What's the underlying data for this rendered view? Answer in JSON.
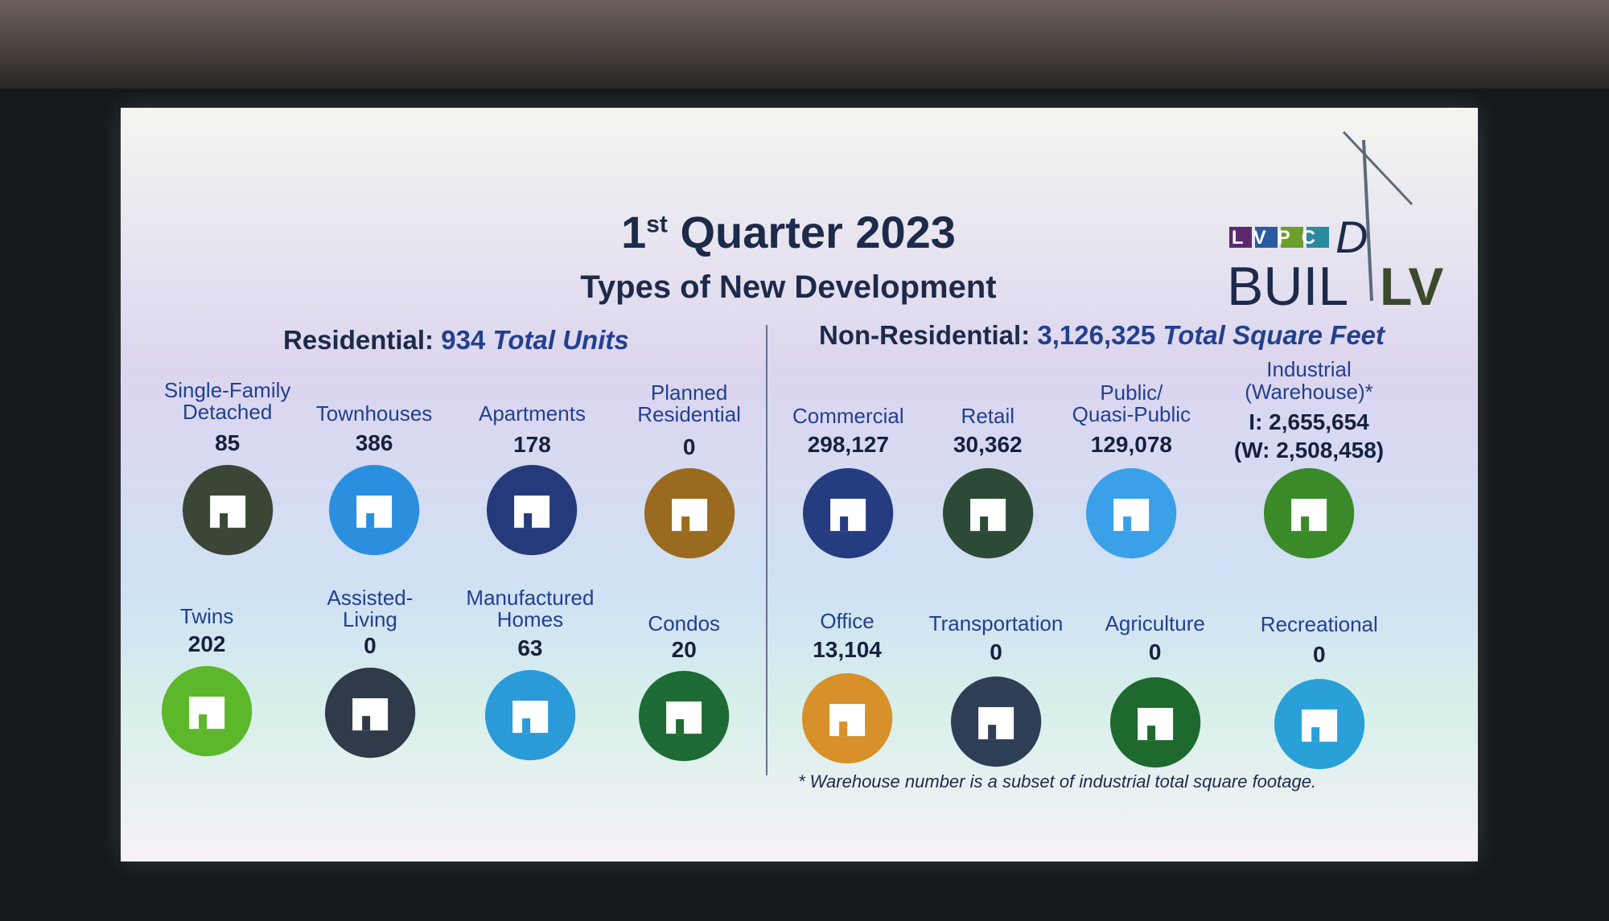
{
  "header": {
    "title": {
      "number": "1",
      "suffix": "st",
      "rest": "Quarter 2023"
    },
    "subtitle": "Types of New Development"
  },
  "logo": {
    "org": "LVPC",
    "word": "BUIL",
    "letter": "D",
    "place": "LV"
  },
  "residential": {
    "label": "Residential:",
    "total": "934",
    "unit": "Total Units",
    "items": [
      {
        "label": "Single-Family\nDetached",
        "value": "85"
      },
      {
        "label": "Townhouses",
        "value": "386"
      },
      {
        "label": "Apartments",
        "value": "178"
      },
      {
        "label": "Planned\nResidential",
        "value": "0"
      },
      {
        "label": "Twins",
        "value": "202"
      },
      {
        "label": "Assisted-\nLiving",
        "value": "0"
      },
      {
        "label": "Manufactured\nHomes",
        "value": "63"
      },
      {
        "label": "Condos",
        "value": "20"
      }
    ]
  },
  "non_residential": {
    "label": "Non-Residential:",
    "total": "3,126,325",
    "unit": "Total Square Feet",
    "items": [
      {
        "label": "Commercial",
        "value": "298,127"
      },
      {
        "label": "Retail",
        "value": "30,362"
      },
      {
        "label": "Public/\nQuasi-Public",
        "value": "129,078"
      },
      {
        "label": "Industrial\n(Warehouse)*",
        "value": "I: 2,655,654",
        "warehouse_value": "(W: 2,508,458)"
      },
      {
        "label": "Office",
        "value": "13,104"
      },
      {
        "label": "Transportation",
        "value": "0"
      },
      {
        "label": "Agriculture",
        "value": "0"
      },
      {
        "label": "Recreational",
        "value": "0"
      }
    ]
  },
  "footnote": "* Warehouse number is a subset of industrial total square footage."
}
